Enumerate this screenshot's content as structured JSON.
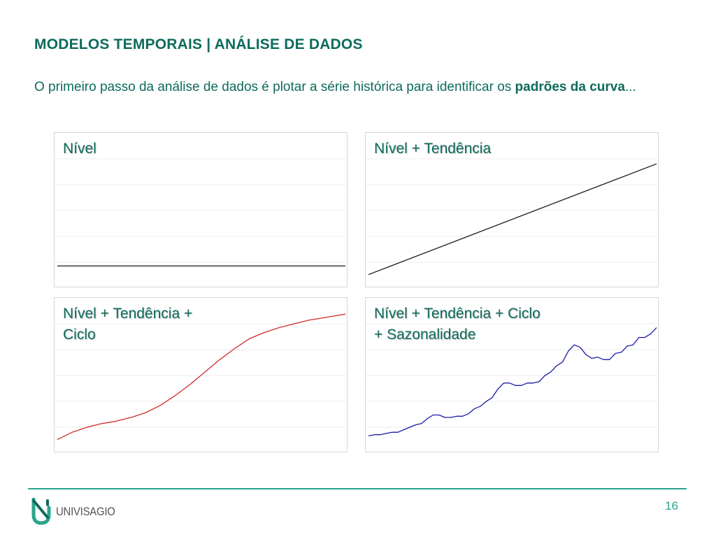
{
  "slide": {
    "title": "MODELOS TEMPORAIS | ANÁLISE DE DADOS",
    "subtitle_text": "O primeiro passo da análise de dados é plotar a série histórica para identificar os ",
    "subtitle_bold": "padrões da curva",
    "subtitle_end": "...",
    "page_number": "16",
    "logo_text": "UNIVISAGIO"
  },
  "colors": {
    "accent": "#0d6b5c",
    "footer": "#2aa58c",
    "grid": "#ececec",
    "series_black": "#1a1a1a",
    "series_red": "#d42a2a",
    "series_blue": "#1a1aa8"
  },
  "chart_data": [
    {
      "type": "line",
      "label": "Nível",
      "grid": true,
      "ylim": [
        0,
        10
      ],
      "color": "#1a1a1a",
      "x": [
        1,
        40
      ],
      "y": [
        1,
        1
      ]
    },
    {
      "type": "line",
      "label": "Nível + Tendência",
      "grid": true,
      "ylim": [
        0,
        10
      ],
      "color": "#1a1a1a",
      "x": [
        1,
        40
      ],
      "y": [
        0.3,
        9.3
      ]
    },
    {
      "type": "line",
      "label": "Nível + Tendência +\nCiclo",
      "grid": true,
      "ylim": [
        0,
        10
      ],
      "color": "#d42a2a",
      "x": [
        1,
        3,
        5,
        7,
        9,
        11,
        13,
        15,
        17,
        19,
        21,
        23,
        25,
        27,
        29,
        31,
        33,
        35,
        37,
        39,
        40
      ],
      "y": [
        0.3,
        0.9,
        1.3,
        1.6,
        1.8,
        2.1,
        2.5,
        3.1,
        3.9,
        4.8,
        5.8,
        6.8,
        7.7,
        8.5,
        9.0,
        9.4,
        9.7,
        10.0,
        10.2,
        10.4,
        10.5
      ]
    },
    {
      "type": "line",
      "label": "Nível + Tendência + Ciclo\n+ Sazonalidade",
      "grid": true,
      "ylim": [
        0,
        10
      ],
      "color": "#1a1aa8",
      "x": [
        1,
        2,
        3,
        4,
        5,
        6,
        7,
        8,
        9,
        10,
        11,
        12,
        13,
        14,
        15,
        16,
        17,
        18,
        19,
        20,
        21,
        22,
        23,
        24,
        25,
        26,
        27,
        28,
        29,
        30,
        31,
        32,
        33,
        34,
        35,
        36,
        37,
        38,
        39,
        40,
        41,
        42,
        43,
        44,
        45,
        46,
        47,
        48,
        49,
        50
      ],
      "y": [
        0.6,
        0.7,
        0.7,
        0.8,
        0.9,
        0.9,
        1.1,
        1.3,
        1.5,
        1.6,
        2.0,
        2.3,
        2.3,
        2.1,
        2.1,
        2.2,
        2.2,
        2.4,
        2.8,
        3.0,
        3.4,
        3.7,
        4.4,
        4.9,
        4.9,
        4.7,
        4.7,
        4.9,
        4.9,
        5.0,
        5.5,
        5.8,
        6.3,
        6.6,
        7.5,
        8.0,
        7.8,
        7.2,
        6.9,
        7.0,
        6.8,
        6.8,
        7.3,
        7.4,
        7.9,
        8.0,
        8.6,
        8.6,
        8.9,
        9.4
      ]
    }
  ]
}
